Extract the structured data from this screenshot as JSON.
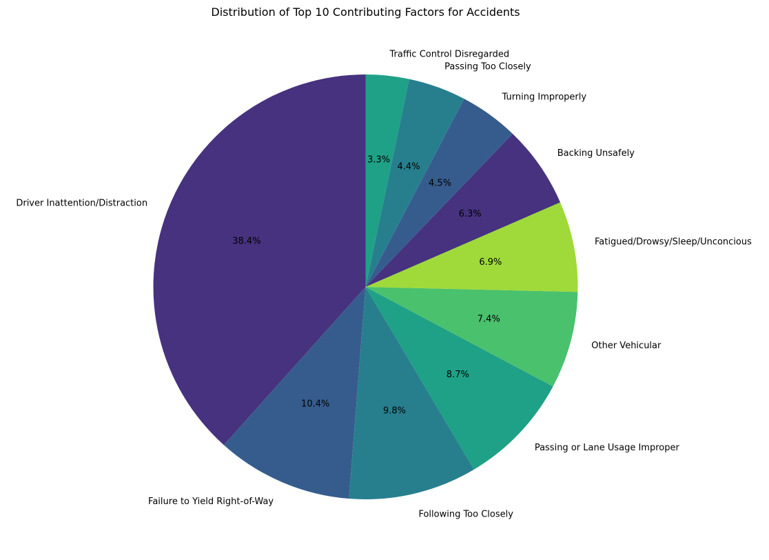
{
  "chart_data": {
    "type": "pie",
    "title": "Distribution of Top 10 Contributing Factors for Accidents",
    "start_angle_deg": 90,
    "direction": "counterclockwise",
    "slices": [
      {
        "label": "Driver Inattention/Distraction",
        "value": 38.4,
        "pct_label": "38.4%",
        "color": "#46327e"
      },
      {
        "label": "Failure to Yield Right-of-Way",
        "value": 10.4,
        "pct_label": "10.4%",
        "color": "#365c8d"
      },
      {
        "label": "Following Too Closely",
        "value": 9.8,
        "pct_label": "9.8%",
        "color": "#277f8e"
      },
      {
        "label": "Passing or Lane Usage Improper",
        "value": 8.7,
        "pct_label": "8.7%",
        "color": "#1fa187"
      },
      {
        "label": "Other Vehicular",
        "value": 7.4,
        "pct_label": "7.4%",
        "color": "#4ac16d"
      },
      {
        "label": "Fatigued/Drowsy/Sleep/Unconcious",
        "value": 6.9,
        "pct_label": "6.9%",
        "color": "#9fda3a"
      },
      {
        "label": "Backing Unsafely",
        "value": 6.3,
        "pct_label": "6.3%",
        "color": "#46327e"
      },
      {
        "label": "Turning Improperly",
        "value": 4.5,
        "pct_label": "4.5%",
        "color": "#365c8d"
      },
      {
        "label": "Passing Too Closely",
        "value": 4.4,
        "pct_label": "4.4%",
        "color": "#277f8e"
      },
      {
        "label": "Traffic Control Disregarded",
        "value": 3.3,
        "pct_label": "3.3%",
        "color": "#1fa187"
      }
    ]
  }
}
